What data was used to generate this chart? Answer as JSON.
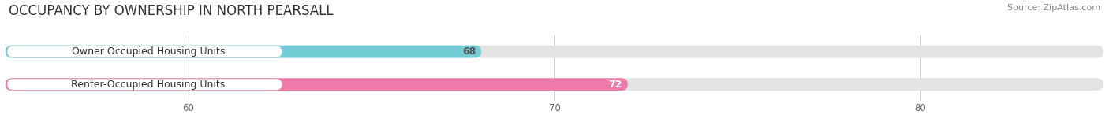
{
  "title": "OCCUPANCY BY OWNERSHIP IN NORTH PEARSALL",
  "source": "Source: ZipAtlas.com",
  "categories": [
    "Owner Occupied Housing Units",
    "Renter-Occupied Housing Units"
  ],
  "values": [
    68,
    72
  ],
  "bar_colors": [
    "#72cdd4",
    "#f07aaa"
  ],
  "value_label_colors": [
    "#555555",
    "#ffffff"
  ],
  "xlim_min": 55,
  "xlim_max": 85,
  "xticks": [
    60,
    70,
    80
  ],
  "background_color": "#ffffff",
  "bar_bg_color": "#e4e4e4",
  "label_box_color": "#f9f9f9",
  "title_fontsize": 12,
  "source_fontsize": 8,
  "label_fontsize": 9,
  "value_fontsize": 9
}
